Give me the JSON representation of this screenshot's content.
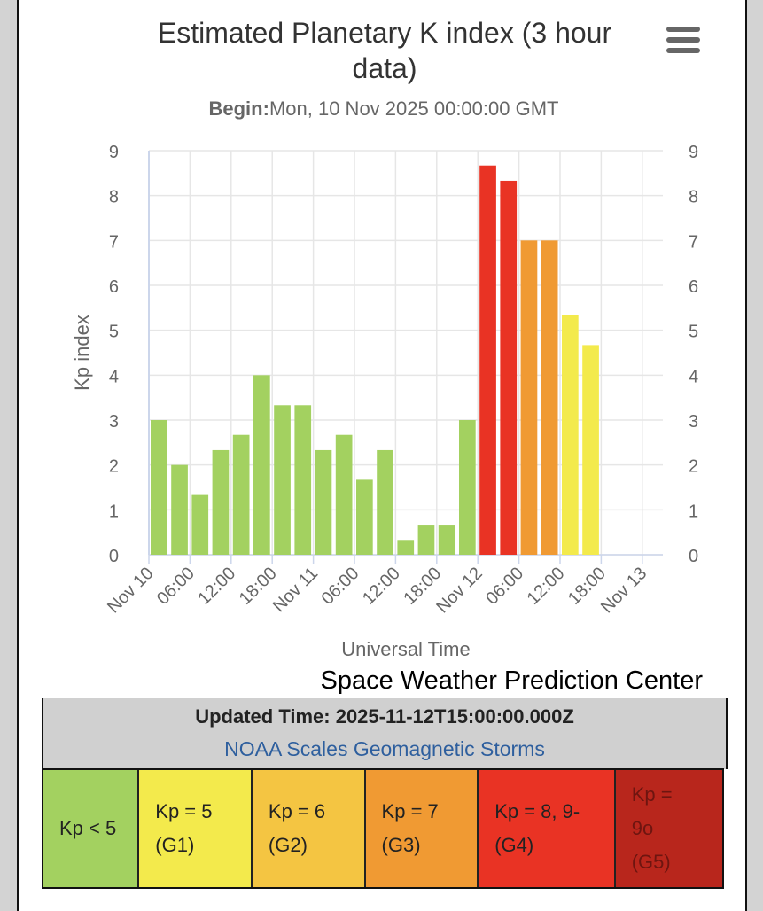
{
  "chart_data": {
    "type": "bar",
    "title": "Estimated Planetary K index (3 hour data)",
    "title_lines": [
      "Estimated Planetary K index (3 hour",
      "data)"
    ],
    "subtitle_label": "Begin:",
    "subtitle_value": "Mon, 10 Nov 2025 00:00:00 GMT",
    "xlabel": "Universal Time",
    "ylabel": "Kp index",
    "ylim": [
      0,
      9
    ],
    "yticks": [
      "0",
      "1",
      "2",
      "3",
      "4",
      "5",
      "6",
      "7",
      "8",
      "9"
    ],
    "xticks": [
      "Nov 10",
      "06:00",
      "12:00",
      "18:00",
      "Nov 11",
      "06:00",
      "12:00",
      "18:00",
      "Nov 12",
      "06:00",
      "12:00",
      "18:00",
      "Nov 13"
    ],
    "x_interval_hours": 3,
    "values": [
      3,
      2,
      1.33,
      2.33,
      2.67,
      4,
      3.33,
      3.33,
      2.33,
      2.67,
      1.67,
      2.33,
      0.33,
      0.67,
      0.67,
      3,
      8.67,
      8.33,
      7,
      7,
      5.33,
      4.67
    ],
    "grid": true
  },
  "colors": {
    "g0": "#a3d160",
    "g1": "#f3ea4c",
    "g2": "#f4c542",
    "g3": "#f09a33",
    "g4": "#e93324",
    "g5": "#b8261c",
    "link": "#2e5f9e"
  },
  "credit": "Space Weather Prediction Center",
  "updated": "Updated Time: 2025-11-12T15:00:00.000Z",
  "scales_link": "NOAA Scales Geomagnetic Storms",
  "legend": [
    {
      "line1": "Kp < 5",
      "line2": "",
      "line3": ""
    },
    {
      "line1": "Kp = 5",
      "line2": "(G1)",
      "line3": ""
    },
    {
      "line1": "Kp = 6",
      "line2": "(G2)",
      "line3": ""
    },
    {
      "line1": "Kp = 7",
      "line2": "(G3)",
      "line3": ""
    },
    {
      "line1": "Kp = 8, 9-",
      "line2": "(G4)",
      "line3": ""
    },
    {
      "line1": "Kp =",
      "line2": "9o",
      "line3": "(G5)"
    }
  ]
}
